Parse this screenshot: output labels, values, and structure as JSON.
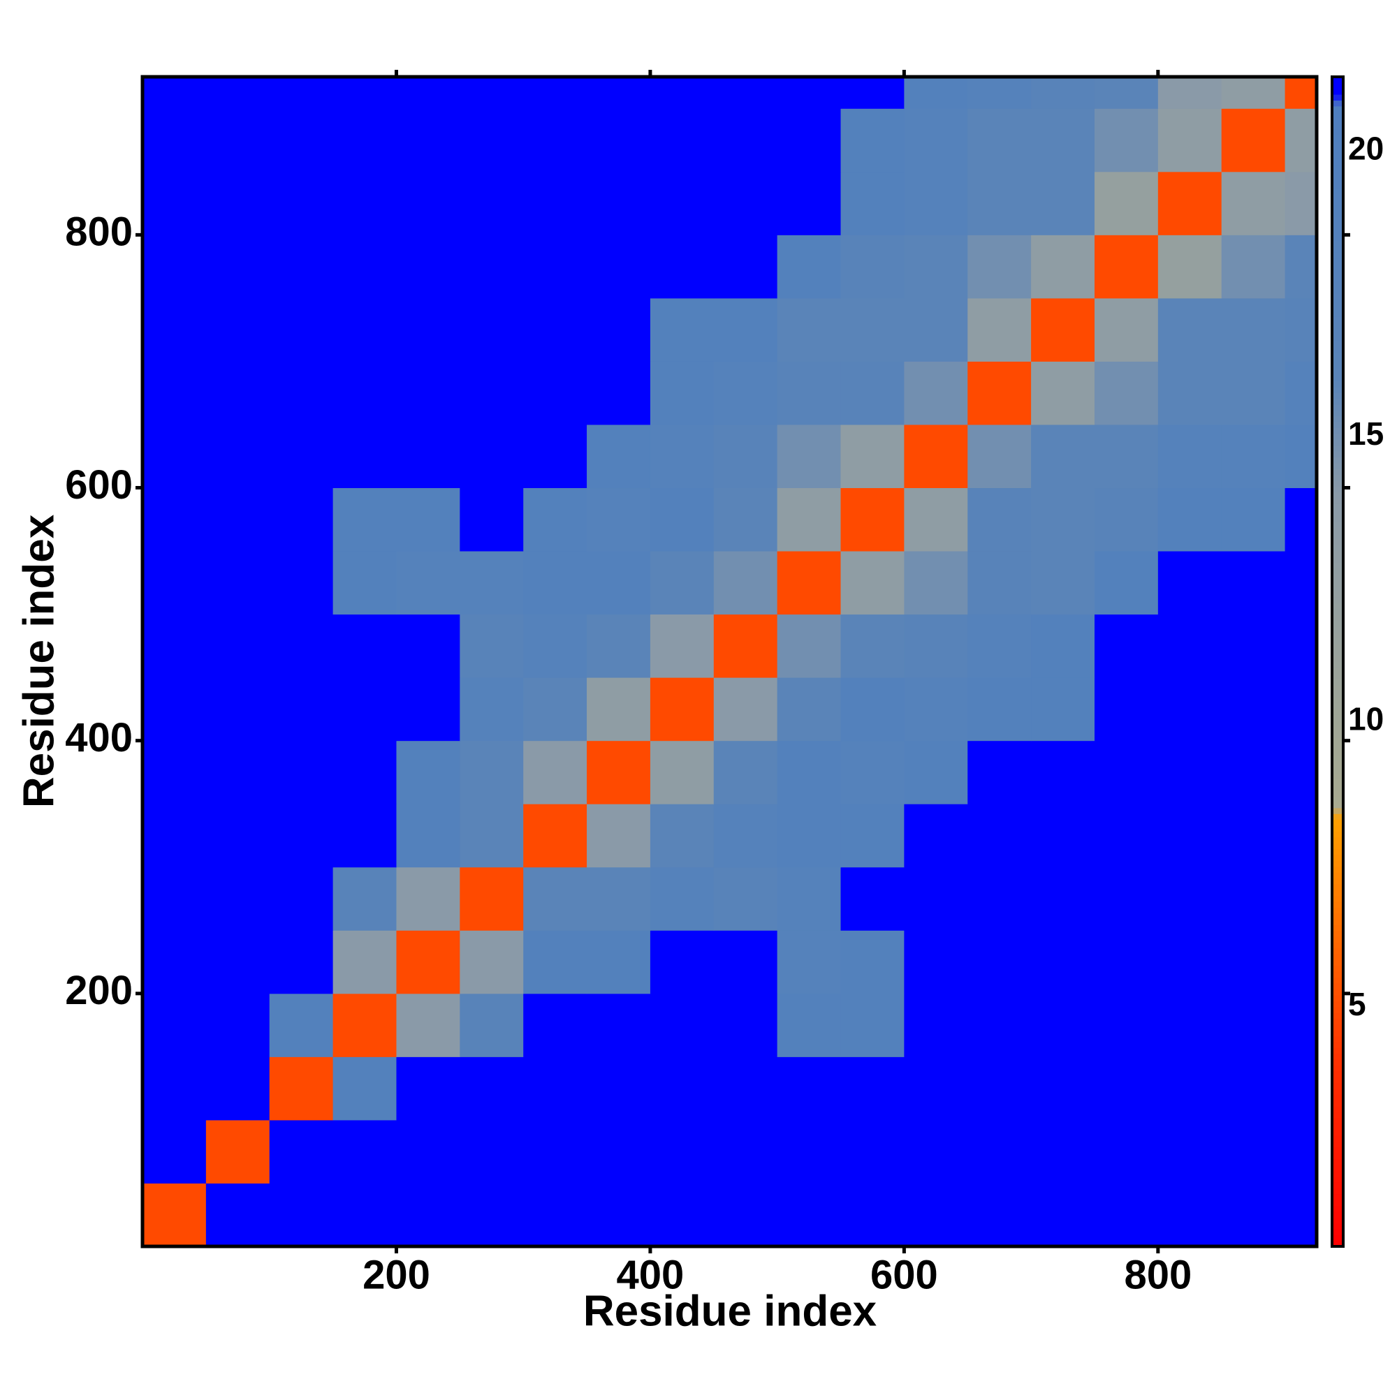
{
  "chart_data": {
    "type": "heatmap",
    "x_label": "Residue index",
    "y_label": "Residue index",
    "xlim": [
      0,
      925
    ],
    "ylim": [
      0,
      925
    ],
    "xticks": [
      200,
      400,
      600,
      800
    ],
    "yticks": [
      200,
      400,
      600,
      800
    ],
    "xbins": [
      0,
      50,
      100,
      150,
      200,
      250,
      300,
      350,
      400,
      450,
      500,
      550,
      600,
      650,
      700,
      750,
      800,
      850,
      900,
      925
    ],
    "ybins": [
      0,
      50,
      100,
      150,
      200,
      250,
      300,
      350,
      400,
      450,
      500,
      550,
      600,
      650,
      700,
      750,
      800,
      850,
      900,
      925
    ],
    "z": [
      [
        5,
        21,
        21,
        21,
        21,
        21,
        21,
        21,
        21,
        21,
        21,
        21,
        21,
        21,
        21,
        21,
        21,
        21,
        21
      ],
      [
        21,
        5,
        21,
        21,
        21,
        21,
        21,
        21,
        21,
        21,
        21,
        21,
        21,
        21,
        21,
        21,
        21,
        21,
        21
      ],
      [
        21,
        21,
        5,
        19,
        21,
        21,
        21,
        21,
        21,
        21,
        21,
        21,
        21,
        21,
        21,
        21,
        21,
        21,
        21
      ],
      [
        21,
        21,
        19,
        5,
        14,
        17,
        21,
        21,
        21,
        21,
        19,
        19,
        21,
        21,
        21,
        21,
        21,
        21,
        21
      ],
      [
        21,
        21,
        21,
        14,
        5,
        14,
        19,
        19,
        21,
        21,
        18,
        19,
        21,
        21,
        21,
        21,
        21,
        21,
        21
      ],
      [
        21,
        21,
        21,
        17,
        14,
        5,
        16,
        16,
        18,
        17,
        18,
        21,
        21,
        21,
        21,
        21,
        21,
        21,
        21
      ],
      [
        21,
        21,
        21,
        21,
        19,
        16,
        5,
        14,
        16,
        18,
        19,
        19,
        21,
        21,
        21,
        21,
        21,
        21,
        21
      ],
      [
        21,
        21,
        21,
        21,
        19,
        16,
        14,
        5,
        13,
        16,
        19,
        18,
        19,
        21,
        21,
        21,
        21,
        21,
        21
      ],
      [
        21,
        21,
        21,
        21,
        21,
        18,
        16,
        13,
        5,
        14,
        16,
        19,
        18,
        19,
        19,
        21,
        21,
        21,
        21
      ],
      [
        21,
        21,
        21,
        21,
        21,
        17,
        18,
        16,
        14,
        5,
        15,
        16,
        17,
        18,
        19,
        21,
        21,
        21,
        21
      ],
      [
        21,
        21,
        21,
        19,
        18,
        18,
        19,
        19,
        16,
        15,
        5,
        13,
        15,
        17,
        16,
        19,
        21,
        21,
        21
      ],
      [
        21,
        21,
        21,
        19,
        19,
        21,
        19,
        18,
        19,
        16,
        13,
        5,
        13,
        17,
        16,
        17,
        19,
        19,
        21
      ],
      [
        21,
        21,
        21,
        21,
        21,
        21,
        21,
        19,
        18,
        17,
        15,
        13,
        5,
        15,
        16,
        16,
        18,
        18,
        19
      ],
      [
        21,
        21,
        21,
        21,
        21,
        21,
        21,
        21,
        19,
        18,
        17,
        17,
        15,
        5,
        13,
        15,
        16,
        16,
        18
      ],
      [
        21,
        21,
        21,
        21,
        21,
        21,
        21,
        21,
        19,
        19,
        16,
        16,
        16,
        13,
        5,
        13,
        16,
        16,
        17
      ],
      [
        21,
        21,
        21,
        21,
        21,
        21,
        21,
        21,
        21,
        21,
        19,
        17,
        16,
        15,
        13,
        5,
        12,
        15,
        16
      ],
      [
        21,
        21,
        21,
        21,
        21,
        21,
        21,
        21,
        21,
        21,
        21,
        19,
        18,
        16,
        16,
        12,
        5,
        13,
        14
      ],
      [
        21,
        21,
        21,
        21,
        21,
        21,
        21,
        21,
        21,
        21,
        21,
        19,
        18,
        16,
        16,
        15,
        13,
        5,
        13
      ],
      [
        21,
        21,
        21,
        21,
        21,
        21,
        21,
        21,
        21,
        21,
        21,
        21,
        19,
        18,
        17,
        16,
        14,
        13,
        5
      ]
    ],
    "clim": [
      0.8,
      21.3
    ],
    "cticks": [
      5,
      10,
      15,
      20
    ],
    "colormap": [
      {
        "value": 0.8,
        "color": "#ff0000"
      },
      {
        "value": 4,
        "color": "#ff3000"
      },
      {
        "value": 8.3,
        "color": "#ffa000"
      },
      {
        "value": 8.5,
        "color": "#a8aa90"
      },
      {
        "value": 14,
        "color": "#8a9aa8"
      },
      {
        "value": 16,
        "color": "#5a84b8"
      },
      {
        "value": 20.8,
        "color": "#4f7fbf"
      },
      {
        "value": 21,
        "color": "#0000ff"
      },
      {
        "value": 21.3,
        "color": "#0000ff"
      }
    ]
  }
}
